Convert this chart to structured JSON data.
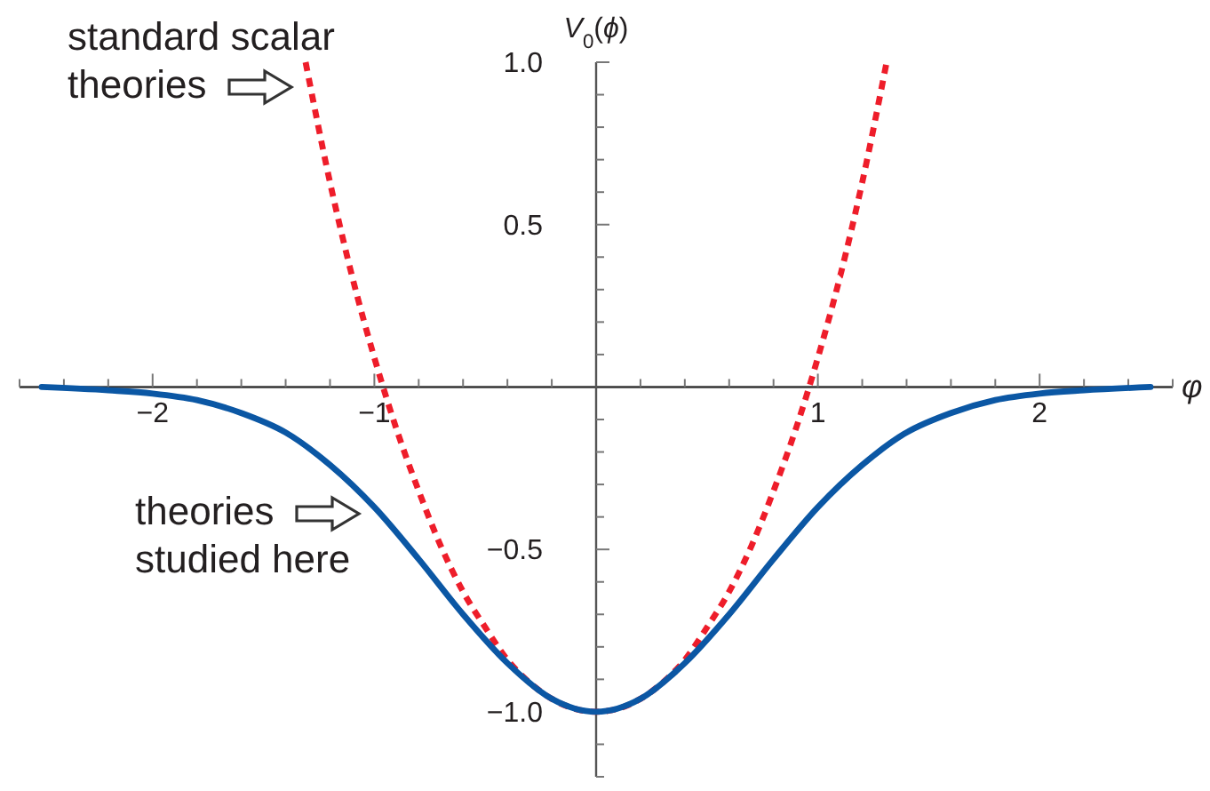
{
  "chart_data": {
    "type": "line",
    "xlabel": "φ",
    "ylabel": "V$_{0}$(ϕ)",
    "xlim": [
      -2.6,
      2.6
    ],
    "ylim": [
      -1.2,
      1.0
    ],
    "xticks": [
      {
        "value": -2.6,
        "label": null
      },
      {
        "value": -2.4,
        "label": null
      },
      {
        "value": -2.2,
        "label": null
      },
      -2,
      {
        "value": -1.8,
        "label": null
      },
      {
        "value": -1.6,
        "label": null
      },
      {
        "value": -1.4,
        "label": null
      },
      {
        "value": -1.2,
        "label": null
      },
      -1,
      {
        "value": -0.8,
        "label": null
      },
      {
        "value": -0.6,
        "label": null
      },
      {
        "value": -0.4,
        "label": null
      },
      {
        "value": -0.2,
        "label": null
      },
      {
        "value": 0.2,
        "label": null
      },
      {
        "value": 0.4,
        "label": null
      },
      {
        "value": 0.6,
        "label": null
      },
      {
        "value": 0.8,
        "label": null
      },
      1,
      {
        "value": 1.2,
        "label": null
      },
      {
        "value": 1.4,
        "label": null
      },
      {
        "value": 1.6,
        "label": null
      },
      {
        "value": 1.8,
        "label": null
      },
      2,
      {
        "value": 2.2,
        "label": null
      },
      {
        "value": 2.4,
        "label": null
      },
      {
        "value": 2.6,
        "label": null
      }
    ],
    "yticks": [
      {
        "value": -1.2,
        "label": null
      },
      {
        "value": -1.1,
        "label": null
      },
      {
        "value": -1,
        "label": "−1.0"
      },
      {
        "value": -0.9,
        "label": null
      },
      {
        "value": -0.8,
        "label": null
      },
      {
        "value": -0.7,
        "label": null
      },
      {
        "value": -0.6,
        "label": null
      },
      -0.5,
      {
        "value": -0.4,
        "label": null
      },
      {
        "value": -0.3,
        "label": null
      },
      {
        "value": -0.2,
        "label": null
      },
      {
        "value": -0.1,
        "label": null
      },
      {
        "value": 0.1,
        "label": null
      },
      {
        "value": 0.2,
        "label": null
      },
      {
        "value": 0.3,
        "label": null
      },
      {
        "value": 0.4,
        "label": null
      },
      0.5,
      {
        "value": 0.6,
        "label": null
      },
      {
        "value": 0.7,
        "label": null
      },
      {
        "value": 0.8,
        "label": null
      },
      {
        "value": 0.9,
        "label": null
      },
      {
        "value": 1,
        "label": "1.0"
      }
    ],
    "series": [
      {
        "color": "#ee1d2a",
        "line_style": "dotted",
        "x": [
          -1.31,
          -1.2,
          -1.1,
          -1.0,
          -0.9,
          -0.8,
          -0.7,
          -0.6,
          -0.5,
          -0.4,
          -0.3,
          -0.2,
          -0.1,
          0,
          0.1,
          0.2,
          0.3,
          0.4,
          0.5,
          0.6,
          0.7,
          0.8,
          0.9,
          1.0,
          1.1,
          1.2,
          1.31
        ],
        "values": [
          1.0,
          0.63,
          0.34,
          0.09,
          -0.13,
          -0.32,
          -0.49,
          -0.63,
          -0.74,
          -0.84,
          -0.91,
          -0.96,
          -0.99,
          -1,
          -0.99,
          -0.96,
          -0.91,
          -0.84,
          -0.74,
          -0.63,
          -0.49,
          -0.32,
          -0.13,
          0.09,
          0.34,
          0.63,
          1.0
        ]
      },
      {
        "color": "#0b57a4",
        "line_style": "solid",
        "x": [
          -2.5,
          -2.2,
          -2.0,
          -1.8,
          -1.6,
          -1.4,
          -1.2,
          -1.0,
          -0.8,
          -0.6,
          -0.4,
          -0.2,
          0,
          0.2,
          0.4,
          0.6,
          0.8,
          1.0,
          1.2,
          1.4,
          1.6,
          1.8,
          2.0,
          2.2,
          2.5
        ],
        "values": [
          0,
          -0.01,
          -0.02,
          -0.04,
          -0.08,
          -0.14,
          -0.24,
          -0.37,
          -0.53,
          -0.7,
          -0.85,
          -0.96,
          -1,
          -0.96,
          -0.85,
          -0.7,
          -0.53,
          -0.37,
          -0.24,
          -0.14,
          -0.08,
          -0.04,
          -0.02,
          -0.01,
          0
        ]
      }
    ],
    "annotations": [
      "standard scalar\ntheories",
      "theories\nstudied here"
    ]
  }
}
